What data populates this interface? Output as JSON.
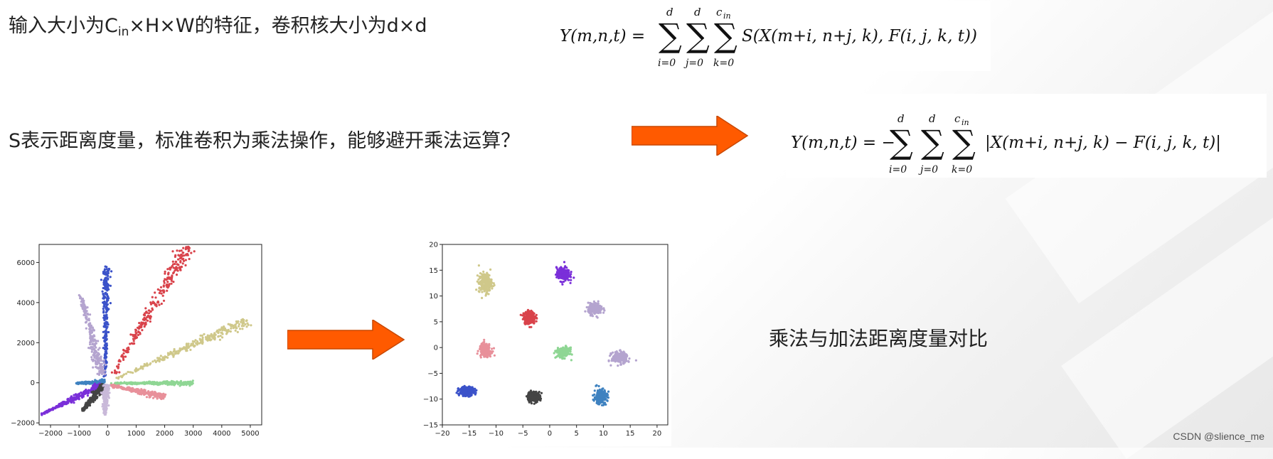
{
  "header": {
    "text_prefix": "输入大小为C",
    "text_sub": "in",
    "text_suffix": "×H×W的特征，卷积核大小为d×d"
  },
  "question": {
    "text": "S表示距离度量，标准卷积为乘法操作，能够避开乘法运算？"
  },
  "formula1": {
    "lhs": "Y(m,n,t) =",
    "sum_upper": [
      "d",
      "d",
      "c",
      "in"
    ],
    "sum_lower": [
      "i=0",
      "j=0",
      "k=0"
    ],
    "body": "S(X(m+i, n+j, k), F(i, j, k, t))"
  },
  "formula2": {
    "lhs": "Y(m,n,t) = −",
    "sum_upper": [
      "d",
      "d",
      "c",
      "in"
    ],
    "sum_lower": [
      "i=0",
      "j=0",
      "k=0"
    ],
    "body": "|X(m+i, n+j, k) − F(i, j, k, t)|"
  },
  "caption": {
    "text": "乘法与加法距离度量对比"
  },
  "watermark": {
    "text": "CSDN @slience_me"
  },
  "colors": {
    "arrow": "#ff5a00",
    "arrow_edge": "#c84800"
  },
  "chart_data": [
    {
      "type": "scatter",
      "title": "",
      "xlabel": "",
      "ylabel": "",
      "xlim": [
        -2400,
        5400
      ],
      "ylim": [
        -2100,
        6900
      ],
      "xticks": [
        -2000,
        -1000,
        0,
        1000,
        2000,
        3000,
        4000,
        5000
      ],
      "yticks": [
        -2000,
        0,
        2000,
        4000,
        6000
      ],
      "tick_labels_x": [
        "−2000",
        "−1000",
        "0",
        "1000",
        "2000",
        "3000",
        "4000",
        "5000"
      ],
      "tick_labels_y": [
        "−2000",
        "0",
        "2000",
        "4000",
        "6000"
      ],
      "grid": false,
      "series": [
        {
          "color": "#d9434b",
          "x": [
            200,
            2800
          ],
          "y": [
            400,
            6800
          ],
          "spread": 100
        },
        {
          "color": "#3b52c9",
          "x": [
            -80,
            -40
          ],
          "y": [
            300,
            5800
          ],
          "spread": 50
        },
        {
          "color": "#b4a4cf",
          "x": [
            -950,
            -200
          ],
          "y": [
            4400,
            400
          ],
          "spread": 70
        },
        {
          "color": "#cfc88a",
          "x": [
            300,
            4900
          ],
          "y": [
            200,
            3100
          ],
          "spread": 90
        },
        {
          "color": "#8fd694",
          "x": [
            100,
            3000
          ],
          "y": [
            -20,
            -20
          ],
          "spread": 40
        },
        {
          "color": "#e8909a",
          "x": [
            100,
            2000
          ],
          "y": [
            -120,
            -700
          ],
          "spread": 60
        },
        {
          "color": "#3f82c0",
          "x": [
            -1100,
            -100
          ],
          "y": [
            -20,
            40
          ],
          "spread": 40
        },
        {
          "color": "#7a2fd9",
          "x": [
            -2350,
            -200
          ],
          "y": [
            -1600,
            -120
          ],
          "spread": 60
        },
        {
          "color": "#444444",
          "x": [
            -900,
            -100
          ],
          "y": [
            -1400,
            -100
          ],
          "spread": 60
        },
        {
          "color": "#c9b9d9",
          "x": [
            -100,
            -50
          ],
          "y": [
            -1600,
            -100
          ],
          "spread": 50
        }
      ]
    },
    {
      "type": "scatter",
      "title": "",
      "xlabel": "",
      "ylabel": "",
      "xlim": [
        -20,
        22
      ],
      "ylim": [
        -15,
        20
      ],
      "xticks": [
        -20,
        -15,
        -10,
        -5,
        0,
        5,
        10,
        15,
        20
      ],
      "yticks": [
        -15,
        -10,
        -5,
        0,
        5,
        10,
        15,
        20
      ],
      "tick_labels_x": [
        "−20",
        "−15",
        "−10",
        "−5",
        "0",
        "5",
        "10",
        "15",
        "20"
      ],
      "tick_labels_y": [
        "−15",
        "−10",
        "−5",
        "0",
        "5",
        "10",
        "15",
        "20"
      ],
      "grid": false,
      "series": [
        {
          "color": "#cfc88a",
          "center": [
            -12,
            12.5
          ],
          "spread": [
            1.0,
            1.6
          ]
        },
        {
          "color": "#7a2fd9",
          "center": [
            2.5,
            14.2
          ],
          "spread": [
            1.0,
            1.1
          ]
        },
        {
          "color": "#d9434b",
          "center": [
            -3.8,
            5.8
          ],
          "spread": [
            0.9,
            1.0
          ]
        },
        {
          "color": "#b4a4cf",
          "center": [
            8.5,
            7.5
          ],
          "spread": [
            1.1,
            0.9
          ]
        },
        {
          "color": "#e8909a",
          "center": [
            -12,
            -0.5
          ],
          "spread": [
            0.9,
            1.0
          ]
        },
        {
          "color": "#8fd694",
          "center": [
            2.5,
            -1
          ],
          "spread": [
            1.0,
            0.8
          ]
        },
        {
          "color": "#b4a4cf",
          "center": [
            13,
            -2
          ],
          "spread": [
            1.2,
            0.9
          ]
        },
        {
          "color": "#3b52c9",
          "center": [
            -15.5,
            -8.5
          ],
          "spread": [
            1.2,
            0.7
          ]
        },
        {
          "color": "#444444",
          "center": [
            -3,
            -9.5
          ],
          "spread": [
            1.0,
            0.8
          ]
        },
        {
          "color": "#3f82c0",
          "center": [
            9.5,
            -9.5
          ],
          "spread": [
            1.0,
            1.2
          ]
        }
      ]
    }
  ]
}
